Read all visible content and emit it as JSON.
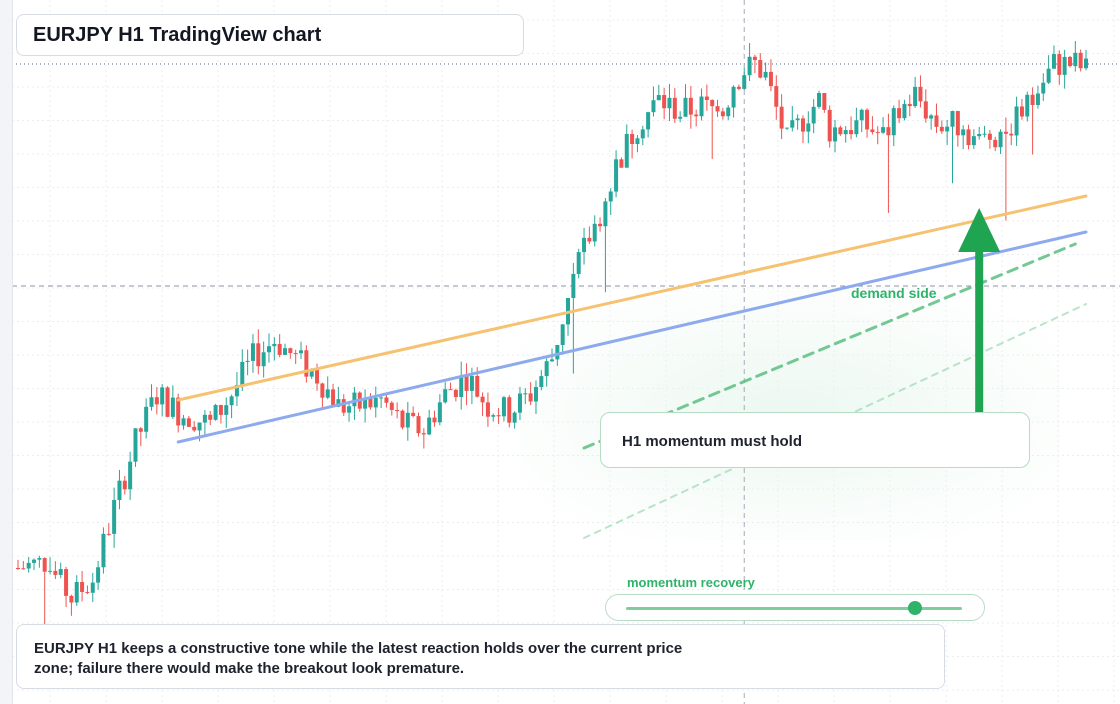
{
  "title": "EURJPY H1 TradingView chart",
  "callout": "H1 momentum must hold",
  "zone_label": "demand side",
  "momentum": {
    "label": "momentum recovery",
    "value": 0.86
  },
  "note": {
    "line1": "EURJPY H1 keeps a constructive tone while the latest reaction holds over the current price",
    "line2": "zone; failure there would make the breakout look premature."
  },
  "colors": {
    "up": "#26a69a",
    "down": "#ef5350",
    "grid": "#e9ecf1",
    "orange_line": "#f6c270",
    "blue_line": "#8eaaee",
    "arrow": "#1fa452",
    "green_accent": "#2fb36a"
  },
  "chart_data": {
    "type": "candlestick",
    "symbol": "EURJPY",
    "timeframe": "H1",
    "title": "EURJPY H1 TradingView chart",
    "grid": true,
    "y_range": [
      0,
      100
    ],
    "x_range": [
      0,
      200
    ],
    "close_path": [
      [
        0,
        12
      ],
      [
        5,
        13
      ],
      [
        10,
        7
      ],
      [
        14,
        10
      ],
      [
        18,
        22
      ],
      [
        22,
        33
      ],
      [
        26,
        41
      ],
      [
        30,
        38
      ],
      [
        36,
        36
      ],
      [
        40,
        41
      ],
      [
        44,
        47
      ],
      [
        48,
        50
      ],
      [
        52,
        47
      ],
      [
        56,
        44
      ],
      [
        60,
        39
      ],
      [
        64,
        39
      ],
      [
        68,
        40
      ],
      [
        72,
        36
      ],
      [
        76,
        35
      ],
      [
        80,
        41
      ],
      [
        84,
        44
      ],
      [
        88,
        39
      ],
      [
        92,
        38
      ],
      [
        96,
        41
      ],
      [
        100,
        47
      ],
      [
        104,
        60
      ],
      [
        106,
        65
      ],
      [
        110,
        73
      ],
      [
        112,
        79
      ],
      [
        116,
        86
      ],
      [
        120,
        90
      ],
      [
        124,
        88
      ],
      [
        128,
        89
      ],
      [
        132,
        88
      ],
      [
        134,
        93
      ],
      [
        136,
        95
      ],
      [
        138,
        96
      ],
      [
        140,
        94
      ],
      [
        144,
        83
      ],
      [
        148,
        88
      ],
      [
        150,
        90
      ],
      [
        152,
        85
      ],
      [
        158,
        86
      ],
      [
        162,
        84
      ],
      [
        166,
        89
      ],
      [
        168,
        91
      ],
      [
        172,
        86
      ],
      [
        176,
        86
      ],
      [
        180,
        83
      ],
      [
        184,
        85
      ],
      [
        186,
        86
      ],
      [
        190,
        90
      ],
      [
        194,
        96
      ],
      [
        198,
        96
      ],
      [
        200,
        95
      ]
    ],
    "reference_lines": [
      {
        "kind": "horizontal",
        "style": "dotted",
        "y": 96
      },
      {
        "kind": "horizontal",
        "style": "dashed",
        "y": 59
      },
      {
        "kind": "vertical",
        "style": "dashed",
        "x": 136
      },
      {
        "kind": "trend",
        "color": "orange",
        "from": [
          30,
          40
        ],
        "to": [
          200,
          74
        ]
      },
      {
        "kind": "trend",
        "color": "blue",
        "from": [
          30,
          33
        ],
        "to": [
          200,
          68
        ]
      },
      {
        "kind": "trend",
        "style": "dashed",
        "color": "green",
        "from": [
          106,
          32
        ],
        "to": [
          198,
          66
        ]
      },
      {
        "kind": "trend",
        "style": "dashed-faint",
        "color": "green",
        "from": [
          106,
          17
        ],
        "to": [
          200,
          56
        ]
      }
    ],
    "zone": {
      "label": "demand side",
      "x": [
        104,
        200
      ],
      "y": [
        28,
        70
      ]
    },
    "arrow": {
      "direction": "up",
      "x": 180,
      "from_y": 30,
      "to_y": 72
    }
  }
}
